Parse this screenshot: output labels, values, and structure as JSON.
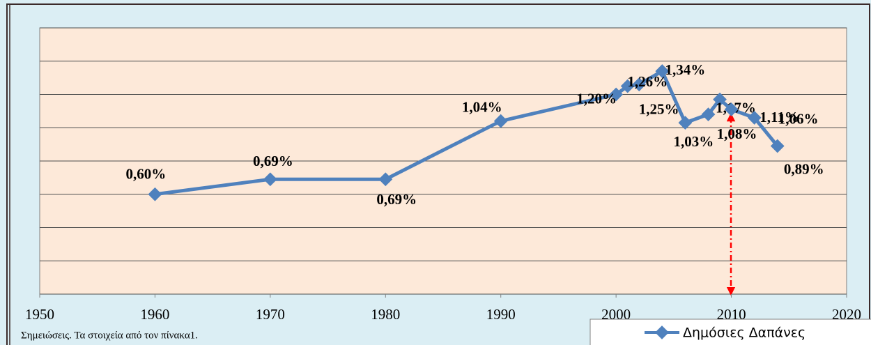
{
  "chart_data": {
    "type": "line",
    "x": [
      1960,
      1970,
      1980,
      1990,
      2000,
      2001,
      2002,
      2004,
      2006,
      2008,
      2009,
      2010,
      2012,
      2014
    ],
    "series": [
      {
        "name": "Δημόσιες Δαπάνες",
        "color": "#4f81bd",
        "values": [
          0.6,
          0.69,
          0.69,
          1.04,
          1.2,
          1.25,
          1.26,
          1.34,
          1.03,
          1.08,
          1.17,
          1.11,
          1.06,
          0.89
        ],
        "value_labels": [
          "0,60%",
          "0,69%",
          "0,69%",
          "1,04%",
          "1,20%",
          "1,25%",
          "1,26%",
          "1,34%",
          "1,03%",
          "1,08%",
          "1,17%",
          "1,11%",
          "1,06%",
          "0,89%"
        ]
      }
    ],
    "xlim": [
      1950,
      2020
    ],
    "xticks": [
      1950,
      1960,
      1970,
      1980,
      1990,
      2000,
      2010,
      2020
    ],
    "ylim": [
      0,
      1.6
    ],
    "yticks": [
      0,
      0.2,
      0.4,
      0.6,
      0.8,
      1.0,
      1.2,
      1.4,
      1.6
    ],
    "grid": true,
    "annotations": [
      "Σημειώσεις. Τα στοιχεία από τον πίνακα1."
    ]
  }
}
